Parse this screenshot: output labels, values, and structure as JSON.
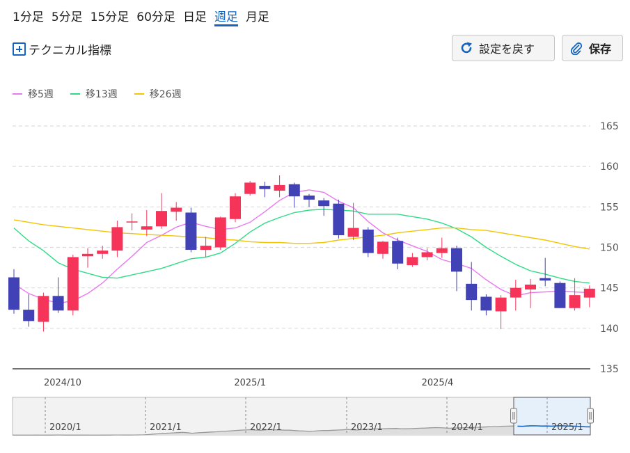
{
  "periods": [
    {
      "label": "1分足",
      "active": false
    },
    {
      "label": "5分足",
      "active": false
    },
    {
      "label": "15分足",
      "active": false
    },
    {
      "label": "60分足",
      "active": false
    },
    {
      "label": "日足",
      "active": false
    },
    {
      "label": "週足",
      "active": true
    },
    {
      "label": "月足",
      "active": false
    }
  ],
  "toolbar": {
    "technical_label": "テクニカル指標",
    "reset_label": "設定を戻す",
    "save_label": "保存"
  },
  "legend": [
    {
      "label": "移5週",
      "color": "#e879f0"
    },
    {
      "label": "移13週",
      "color": "#2edc84"
    },
    {
      "label": "移26週",
      "color": "#f2c500"
    }
  ],
  "colors": {
    "up": "#f6345a",
    "down": "#4142b5",
    "grid": "#d9dce1",
    "accent": "#1565c0"
  },
  "chart_data": {
    "type": "candlestick",
    "ylim": [
      135,
      167
    ],
    "yticks": [
      135,
      140,
      145,
      150,
      155,
      160,
      165
    ],
    "xlabels": [
      {
        "index": 3.3,
        "label": "2024/10"
      },
      {
        "index": 16,
        "label": "2025/1"
      },
      {
        "index": 28.7,
        "label": "2025/4"
      }
    ],
    "candles": [
      {
        "o": 146.3,
        "h": 147.3,
        "l": 141.8,
        "c": 142.3
      },
      {
        "o": 142.3,
        "h": 144.2,
        "l": 140.2,
        "c": 140.9
      },
      {
        "o": 140.8,
        "h": 144.4,
        "l": 139.6,
        "c": 144.0
      },
      {
        "o": 144.0,
        "h": 146.3,
        "l": 141.9,
        "c": 142.2
      },
      {
        "o": 142.2,
        "h": 149.1,
        "l": 141.6,
        "c": 148.8
      },
      {
        "o": 148.9,
        "h": 149.9,
        "l": 147.5,
        "c": 149.2
      },
      {
        "o": 149.2,
        "h": 150.2,
        "l": 148.6,
        "c": 149.6
      },
      {
        "o": 149.6,
        "h": 153.3,
        "l": 148.8,
        "c": 152.5
      },
      {
        "o": 153.2,
        "h": 154.2,
        "l": 152.1,
        "c": 153.2
      },
      {
        "o": 152.2,
        "h": 154.6,
        "l": 151.4,
        "c": 152.6
      },
      {
        "o": 152.6,
        "h": 156.7,
        "l": 152.3,
        "c": 154.5
      },
      {
        "o": 154.4,
        "h": 155.6,
        "l": 153.3,
        "c": 154.9
      },
      {
        "o": 154.3,
        "h": 154.9,
        "l": 149.4,
        "c": 149.7
      },
      {
        "o": 149.7,
        "h": 151.3,
        "l": 148.8,
        "c": 150.2
      },
      {
        "o": 150.0,
        "h": 153.8,
        "l": 149.7,
        "c": 153.7
      },
      {
        "o": 153.5,
        "h": 156.7,
        "l": 153.1,
        "c": 156.3
      },
      {
        "o": 156.6,
        "h": 158.2,
        "l": 156.4,
        "c": 158.0
      },
      {
        "o": 157.6,
        "h": 158.1,
        "l": 156.2,
        "c": 157.2
      },
      {
        "o": 157.0,
        "h": 158.9,
        "l": 156.2,
        "c": 157.7
      },
      {
        "o": 157.8,
        "h": 158.0,
        "l": 154.9,
        "c": 156.3
      },
      {
        "o": 156.4,
        "h": 156.6,
        "l": 155.0,
        "c": 155.9
      },
      {
        "o": 155.8,
        "h": 156.1,
        "l": 153.9,
        "c": 155.1
      },
      {
        "o": 155.4,
        "h": 155.9,
        "l": 151.1,
        "c": 151.5
      },
      {
        "o": 151.3,
        "h": 155.5,
        "l": 150.9,
        "c": 152.4
      },
      {
        "o": 152.2,
        "h": 152.5,
        "l": 148.8,
        "c": 149.3
      },
      {
        "o": 149.2,
        "h": 150.8,
        "l": 148.6,
        "c": 150.7
      },
      {
        "o": 150.8,
        "h": 151.2,
        "l": 147.3,
        "c": 148.0
      },
      {
        "o": 147.8,
        "h": 149.3,
        "l": 147.6,
        "c": 148.8
      },
      {
        "o": 148.8,
        "h": 149.9,
        "l": 148.4,
        "c": 149.4
      },
      {
        "o": 149.3,
        "h": 151.2,
        "l": 148.7,
        "c": 149.9
      },
      {
        "o": 149.9,
        "h": 150.2,
        "l": 144.6,
        "c": 147.0
      },
      {
        "o": 145.5,
        "h": 148.2,
        "l": 142.2,
        "c": 143.5
      },
      {
        "o": 143.9,
        "h": 144.2,
        "l": 141.6,
        "c": 142.2
      },
      {
        "o": 142.1,
        "h": 144.1,
        "l": 139.9,
        "c": 143.8
      },
      {
        "o": 143.8,
        "h": 146.0,
        "l": 142.2,
        "c": 145.0
      },
      {
        "o": 144.8,
        "h": 146.1,
        "l": 142.5,
        "c": 145.4
      },
      {
        "o": 146.2,
        "h": 148.7,
        "l": 145.2,
        "c": 145.9
      },
      {
        "o": 145.6,
        "h": 145.8,
        "l": 142.5,
        "c": 142.5
      },
      {
        "o": 142.5,
        "h": 146.2,
        "l": 142.2,
        "c": 144.1
      },
      {
        "o": 143.8,
        "h": 145.3,
        "l": 142.6,
        "c": 144.9
      }
    ],
    "series": [
      {
        "name": "移5週",
        "color": "#e879f0",
        "values": [
          145.5,
          144.3,
          143.6,
          143.1,
          143.4,
          144.3,
          145.6,
          147.3,
          148.9,
          150.6,
          151.5,
          152.5,
          153.1,
          152.6,
          152.2,
          152.4,
          153.1,
          154.4,
          155.8,
          156.8,
          157.1,
          156.8,
          155.7,
          154.9,
          153.2,
          151.8,
          150.9,
          150.2,
          149.5,
          148.5,
          148.0,
          147.4,
          146.0,
          144.8,
          144.0,
          144.4,
          144.5,
          144.6,
          144.5,
          144.4
        ]
      },
      {
        "name": "移13週",
        "color": "#2edc84",
        "values": [
          152.4,
          150.8,
          149.6,
          148.1,
          147.3,
          146.8,
          146.3,
          146.2,
          146.6,
          147.0,
          147.4,
          148.0,
          148.6,
          148.8,
          149.3,
          150.5,
          151.9,
          153.0,
          153.7,
          154.3,
          154.6,
          154.7,
          154.6,
          154.5,
          154.1,
          154.1,
          154.1,
          153.8,
          153.5,
          153.0,
          152.3,
          151.3,
          150.0,
          148.9,
          147.9,
          147.1,
          146.7,
          146.2,
          145.8,
          145.6
        ]
      },
      {
        "name": "移26週",
        "color": "#f2c500",
        "values": [
          153.4,
          153.1,
          152.8,
          152.6,
          152.4,
          152.2,
          152.0,
          151.8,
          151.7,
          151.6,
          151.5,
          151.4,
          151.3,
          151.2,
          151.0,
          150.9,
          150.7,
          150.6,
          150.6,
          150.5,
          150.5,
          150.6,
          150.9,
          151.1,
          151.3,
          151.5,
          151.8,
          152.0,
          152.2,
          152.4,
          152.4,
          152.2,
          152.1,
          151.8,
          151.5,
          151.2,
          150.9,
          150.5,
          150.1,
          149.8
        ]
      }
    ],
    "navigator": {
      "labels": [
        "2020/1",
        "2021/1",
        "2022/1",
        "2023/1",
        "2024/1",
        "2025/1"
      ],
      "values": [
        82.5,
        82.6,
        82.4,
        82.3,
        82.6,
        82.8,
        82.5,
        82.7,
        82.9,
        83.1,
        83.2,
        83.0,
        82.8,
        82.9,
        83.0,
        82.7,
        82.4,
        82.3,
        82.5,
        82.8,
        83.0,
        83.4,
        83.5,
        83.3,
        83.1,
        83.4,
        83.9,
        84.5,
        86.0,
        88.5,
        90.0,
        92.5,
        93.5,
        95.0,
        96.5,
        98.0,
        96.0,
        93.0,
        95.5,
        97.0,
        98.5,
        100.0,
        101.0,
        103.5,
        104.5,
        106.0,
        108.5,
        110.0,
        111.0,
        112.5,
        110.5,
        109.0,
        111.5,
        113.0,
        112.0,
        111.5,
        110.0,
        109.8,
        108.0,
        106.0,
        105.5,
        104.0,
        104.5,
        107.0,
        108.5,
        108.0,
        109.5,
        110.5,
        112.0,
        114.0,
        112.0,
        111.0,
        113.5,
        115.0,
        116.5,
        117.0,
        118.0,
        118.5,
        119.0,
        119.5,
        118.0,
        117.5,
        118.5,
        119.5,
        120.5,
        121.5,
        123.0,
        124.0,
        123.5,
        122.0,
        120.5,
        121.5,
        122.5,
        123.5,
        124.5,
        125.5,
        126.0,
        127.0,
        128.5,
        129.5,
        130.0,
        131.5,
        132.0,
        133.0,
        132.0,
        131.0,
        133.0,
        134.0,
        133.5,
        132.5,
        133.0,
        132.0,
        133.5,
        134.5,
        133.0,
        132.0,
        131.5,
        130.0,
        128.5,
        128.0
      ]
    }
  }
}
